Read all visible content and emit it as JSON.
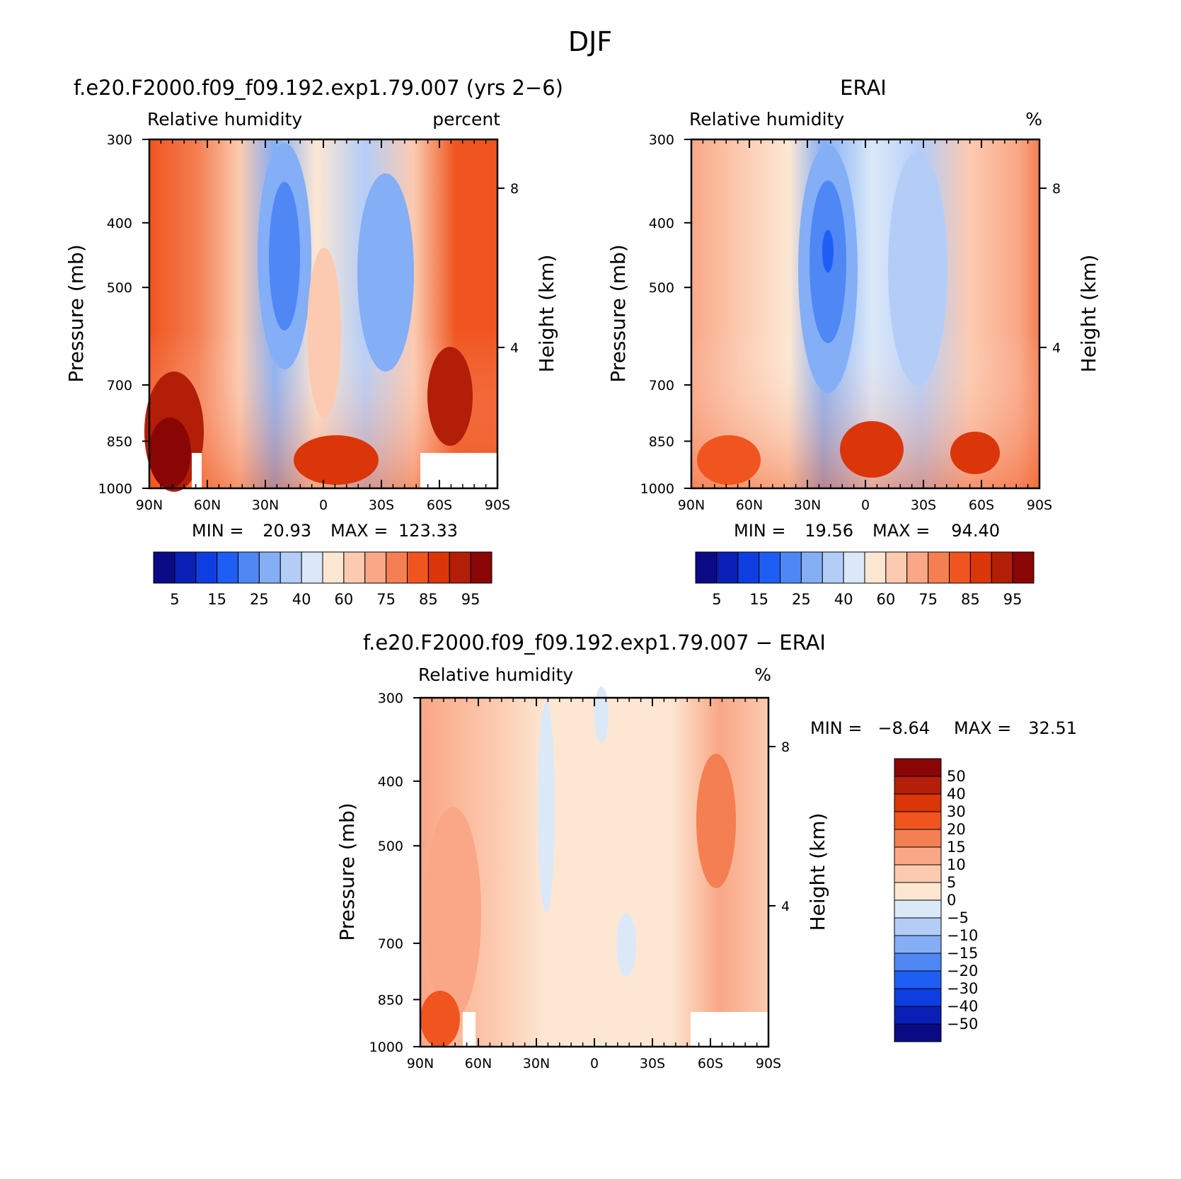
{
  "figure": {
    "title": "DJF"
  },
  "chart_data": [
    {
      "type": "heatmap",
      "id": "model",
      "title": "f.e20.F2000.f09_f09.192.exp1.79.007 (yrs 2−6)",
      "left_label": "Relative humidity",
      "right_label": "percent",
      "xlabel": "",
      "ylabel": "Pressure (mb)",
      "y2label": "Height (km)",
      "x_ticks": [
        "90N",
        "60N",
        "30N",
        "0",
        "30S",
        "60S",
        "90S"
      ],
      "y_ticks": [
        "300",
        "400",
        "500",
        "700",
        "850",
        "1000"
      ],
      "y2_ticks": [
        "8",
        "4"
      ],
      "min_label": "MIN =",
      "min_value": "20.93",
      "max_label": "MAX =",
      "max_value": "123.33",
      "colorbar_labels": [
        "5",
        "15",
        "25",
        "40",
        "60",
        "75",
        "85",
        "95"
      ],
      "colorbar_colors": [
        "#0a0a85",
        "#0a1fb5",
        "#0f3ee0",
        "#1f5ef5",
        "#4f87f5",
        "#84aef5",
        "#b4cdf7",
        "#dbe8f8",
        "#fde7d3",
        "#fccab0",
        "#f9a786",
        "#f47f52",
        "#f0551f",
        "#db350a",
        "#b21e08",
        "#8a0505"
      ]
    },
    {
      "type": "heatmap",
      "id": "obs",
      "title": "ERAI",
      "left_label": "Relative humidity",
      "right_label": "%",
      "xlabel": "",
      "ylabel": "Pressure (mb)",
      "y2label": "Height (km)",
      "x_ticks": [
        "90N",
        "60N",
        "30N",
        "0",
        "30S",
        "60S",
        "90S"
      ],
      "y_ticks": [
        "300",
        "400",
        "500",
        "700",
        "850",
        "1000"
      ],
      "y2_ticks": [
        "8",
        "4"
      ],
      "min_label": "MIN =",
      "min_value": "19.56",
      "max_label": "MAX =",
      "max_value": "94.40",
      "colorbar_labels": [
        "5",
        "15",
        "25",
        "40",
        "60",
        "75",
        "85",
        "95"
      ],
      "colorbar_colors": [
        "#0a0a85",
        "#0a1fb5",
        "#0f3ee0",
        "#1f5ef5",
        "#4f87f5",
        "#84aef5",
        "#b4cdf7",
        "#dbe8f8",
        "#fde7d3",
        "#fccab0",
        "#f9a786",
        "#f47f52",
        "#f0551f",
        "#db350a",
        "#b21e08",
        "#8a0505"
      ]
    },
    {
      "type": "heatmap",
      "id": "diff",
      "title": "f.e20.F2000.f09_f09.192.exp1.79.007 − ERAI",
      "left_label": "Relative humidity",
      "right_label": "%",
      "xlabel": "",
      "ylabel": "Pressure (mb)",
      "y2label": "Height (km)",
      "x_ticks": [
        "90N",
        "60N",
        "30N",
        "0",
        "30S",
        "60S",
        "90S"
      ],
      "y_ticks": [
        "300",
        "400",
        "500",
        "700",
        "850",
        "1000"
      ],
      "y2_ticks": [
        "8",
        "4"
      ],
      "min_label": "MIN =",
      "min_value": "−8.64",
      "max_label": "MAX =",
      "max_value": "32.51",
      "colorbar_labels": [
        "50",
        "40",
        "30",
        "20",
        "15",
        "10",
        "5",
        "0",
        "−5",
        "−10",
        "−15",
        "−20",
        "−30",
        "−40",
        "−50"
      ],
      "colorbar_colors": [
        "#8a0505",
        "#b21e08",
        "#db350a",
        "#f0551f",
        "#f47f52",
        "#f9a786",
        "#fccab0",
        "#fde7d3",
        "#dbe8f8",
        "#b4cdf7",
        "#84aef5",
        "#4f87f5",
        "#1f5ef5",
        "#0f3ee0",
        "#0a1fb5",
        "#0a0a85"
      ]
    }
  ]
}
